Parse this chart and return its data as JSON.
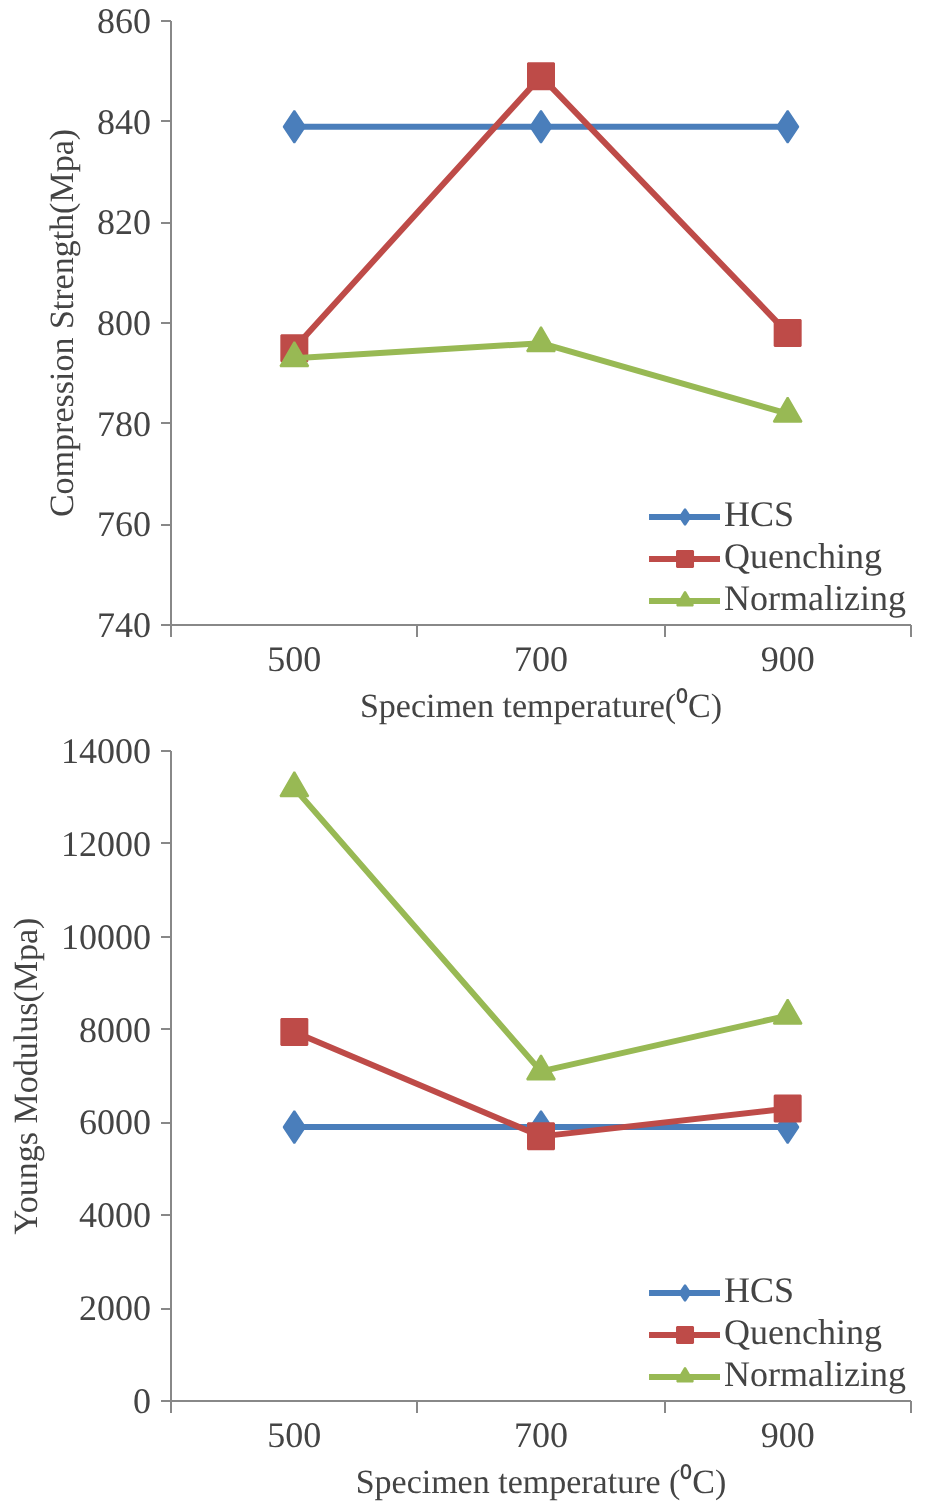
{
  "chart_data": [
    {
      "type": "line",
      "xlabel": "Specimen temperature(⁰C)",
      "ylabel": "Compression Strength(Mpa)",
      "categories": [
        "500",
        "700",
        "900"
      ],
      "ylim": [
        740,
        860
      ],
      "yticks": [
        740,
        760,
        780,
        800,
        820,
        840,
        860
      ],
      "grid": false,
      "legend": "bottom right",
      "series": [
        {
          "name": "HCS",
          "color": "#4a7ebb",
          "marker": "diamond",
          "values": [
            839,
            839,
            839
          ]
        },
        {
          "name": "Quenching",
          "color": "#be4b48",
          "marker": "square",
          "values": [
            795,
            849,
            798
          ]
        },
        {
          "name": "Normalizing",
          "color": "#98b954",
          "marker": "triangle",
          "values": [
            793,
            796,
            782
          ]
        }
      ]
    },
    {
      "type": "line",
      "xlabel": "Specimen temperature (⁰C)",
      "ylabel": "Youngs Modulus(Mpa)",
      "categories": [
        "500",
        "700",
        "900"
      ],
      "ylim": [
        0,
        14000
      ],
      "yticks": [
        0,
        2000,
        4000,
        6000,
        8000,
        10000,
        12000,
        14000
      ],
      "grid": false,
      "legend": "bottom right",
      "series": [
        {
          "name": "HCS",
          "color": "#4a7ebb",
          "marker": "diamond",
          "values": [
            5900,
            5900,
            5900
          ]
        },
        {
          "name": "Quenching",
          "color": "#be4b48",
          "marker": "square",
          "values": [
            7950,
            5700,
            6300
          ]
        },
        {
          "name": "Normalizing",
          "color": "#98b954",
          "marker": "triangle",
          "values": [
            13200,
            7100,
            8300
          ]
        }
      ]
    }
  ]
}
